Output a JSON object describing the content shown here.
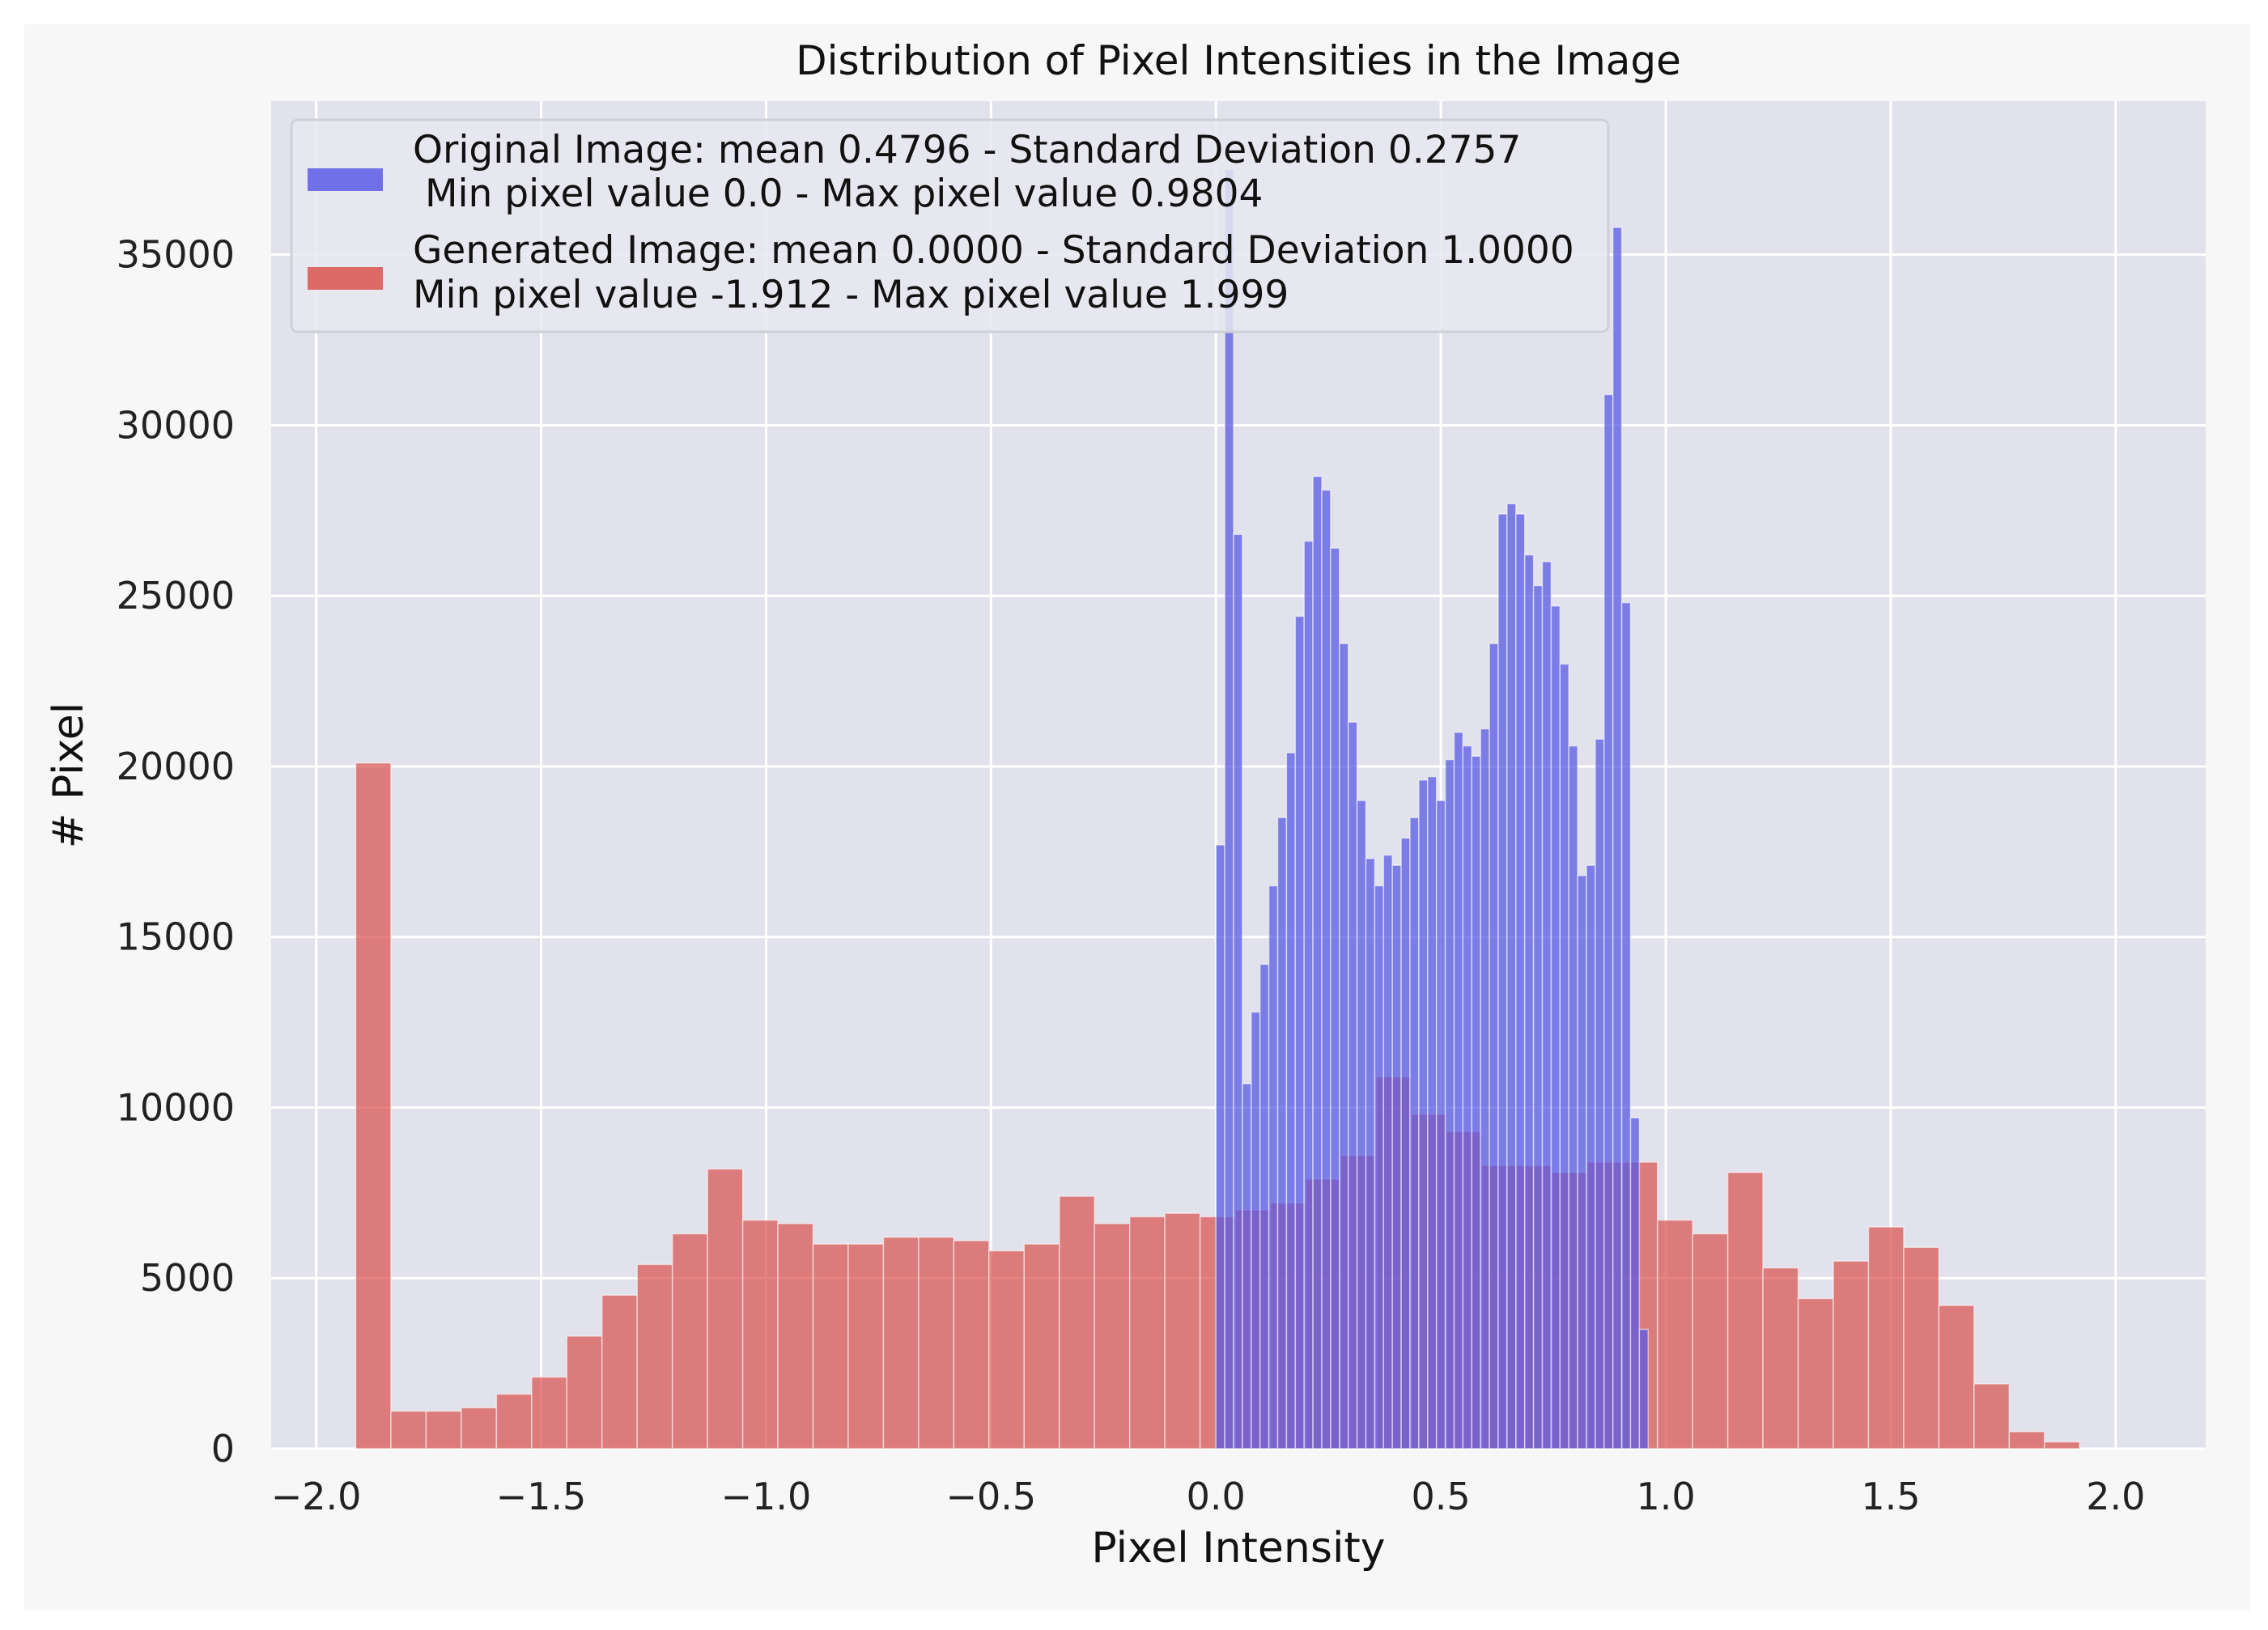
{
  "chart_data": {
    "type": "bar",
    "title": "Distribution of Pixel Intensities in the Image",
    "xlabel": "Pixel Intensity",
    "ylabel": "# Pixel",
    "xlim": [
      -2.1,
      2.2
    ],
    "ylim": [
      0,
      39500
    ],
    "xticks": [
      -2.0,
      -1.5,
      -1.0,
      -0.5,
      0.0,
      0.5,
      1.0,
      1.5,
      2.0
    ],
    "xtick_labels": [
      "−2.0",
      "−1.5",
      "−1.0",
      "−0.5",
      "0.0",
      "0.5",
      "1.0",
      "1.5",
      "2.0"
    ],
    "yticks": [
      0,
      5000,
      10000,
      15000,
      20000,
      25000,
      30000,
      35000
    ],
    "ytick_labels": [
      "0",
      "5000",
      "10000",
      "15000",
      "20000",
      "25000",
      "30000",
      "35000"
    ],
    "grid": true,
    "legend_position": "top-left",
    "colors": {
      "background": "#e2e2ec",
      "grid": "#ffffff",
      "original": "#5a5ae6",
      "generated": "#d9534f"
    },
    "series": [
      {
        "name": "Original Image",
        "legend_line1": "Original Image: mean 0.4796 - Standard Deviation 0.2757",
        "legend_line2": " Min pixel value 0.0 - Max pixel value 0.9804",
        "bin_start": 0.0,
        "bin_width": 0.01961,
        "values": [
          17700,
          37500,
          26800,
          10700,
          12800,
          14200,
          16500,
          18500,
          20400,
          24400,
          26600,
          28500,
          28100,
          26400,
          23600,
          21300,
          19000,
          17300,
          16500,
          17400,
          17100,
          17900,
          18500,
          19600,
          19700,
          19000,
          20200,
          21000,
          20600,
          20300,
          21100,
          23600,
          27400,
          27700,
          27400,
          26200,
          25300,
          26000,
          24700,
          23000,
          20600,
          16800,
          17100,
          20800,
          30900,
          35800,
          24800,
          9700,
          3500
        ]
      },
      {
        "name": "Generated Image",
        "legend_line1": "Generated Image: mean 0.0000 - Standard Deviation 1.0000",
        "legend_line2": "Min pixel value -1.912 - Max pixel value 1.999",
        "bin_start": -1.912,
        "bin_width": 0.0782,
        "values": [
          20100,
          1100,
          1100,
          1200,
          1600,
          2100,
          3300,
          4500,
          5400,
          6300,
          8200,
          6700,
          6600,
          6000,
          6000,
          6200,
          6200,
          6100,
          5800,
          6000,
          7400,
          6600,
          6800,
          6900,
          6800,
          7000,
          7200,
          7900,
          8600,
          10900,
          9800,
          9300,
          8300,
          8300,
          8100,
          8400,
          8400,
          6700,
          6300,
          8100,
          5300,
          4400,
          5500,
          6500,
          5900,
          4200,
          1900,
          500,
          200
        ]
      }
    ]
  }
}
